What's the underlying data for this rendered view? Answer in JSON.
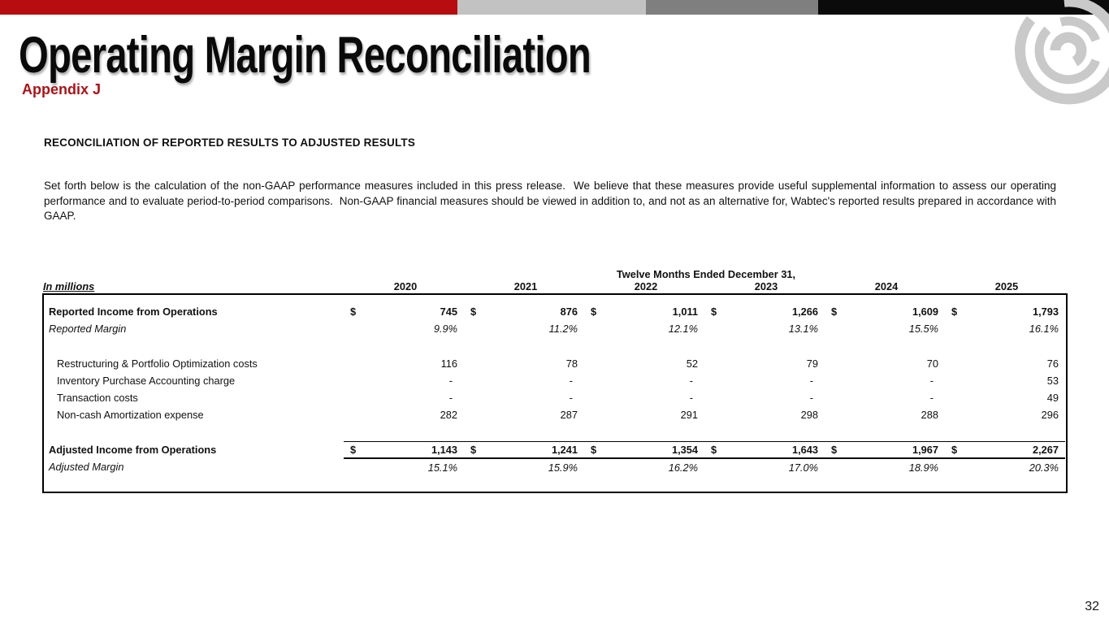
{
  "slide": {
    "title": "Operating Margin Reconciliation",
    "subtitle": "Appendix J",
    "section_heading": "RECONCILIATION OF REPORTED RESULTS TO ADJUSTED RESULTS",
    "body_text": "Set forth below is the calculation of the non-GAAP performance measures included in this press release.  We believe that these measures provide useful supplemental information to assess our operating performance and to evaluate period-to-period comparisons.  Non-GAAP financial measures should be viewed in addition to, and not as an alternative for, Wabtec's reported results prepared in accordance with GAAP.",
    "page_number": "32"
  },
  "colors": {
    "bar_red": "#B70D10",
    "bar_light_gray": "#C2C2C2",
    "bar_medium_gray": "#7F7F7F",
    "bar_black": "#0B0B0B",
    "subtitle_red": "#A6151A",
    "logo_gray": "#C9C9C9"
  },
  "table": {
    "units_label": "In millions",
    "period_header": "Twelve Months Ended December 31,",
    "years": [
      "2020",
      "2021",
      "2022",
      "2023",
      "2024",
      "2025"
    ],
    "rows": [
      {
        "label": "Reported Income from Operations",
        "style": "bold",
        "dollar": "$",
        "values": [
          "745",
          "876",
          "1,011",
          "1,266",
          "1,609",
          "1,793"
        ]
      },
      {
        "label": "Reported Margin",
        "style": "italic",
        "dollar": "",
        "values": [
          "9.9%",
          "11.2%",
          "12.1%",
          "13.1%",
          "15.5%",
          "16.1%"
        ]
      },
      {
        "label": "Restructuring & Portfolio Optimization costs",
        "style": "indent",
        "dollar": "",
        "values": [
          "116",
          "78",
          "52",
          "79",
          "70",
          "76"
        ]
      },
      {
        "label": "Inventory Purchase Accounting charge",
        "style": "indent",
        "dollar": "",
        "values": [
          "-",
          "-",
          "-",
          "-",
          "-",
          "53"
        ]
      },
      {
        "label": "Transaction costs",
        "style": "indent",
        "dollar": "",
        "values": [
          "-",
          "-",
          "-",
          "-",
          "-",
          "49"
        ]
      },
      {
        "label": "Non-cash Amortization expense",
        "style": "indent",
        "dollar": "",
        "values": [
          "282",
          "287",
          "291",
          "298",
          "288",
          "296"
        ]
      },
      {
        "label": "Adjusted Income from Operations",
        "style": "bold total",
        "dollar": "$",
        "values": [
          "1,143",
          "1,241",
          "1,354",
          "1,643",
          "1,967",
          "2,267"
        ]
      },
      {
        "label": "Adjusted Margin",
        "style": "italic",
        "dollar": "",
        "values": [
          "15.1%",
          "15.9%",
          "16.2%",
          "17.0%",
          "18.9%",
          "20.3%"
        ]
      }
    ]
  }
}
